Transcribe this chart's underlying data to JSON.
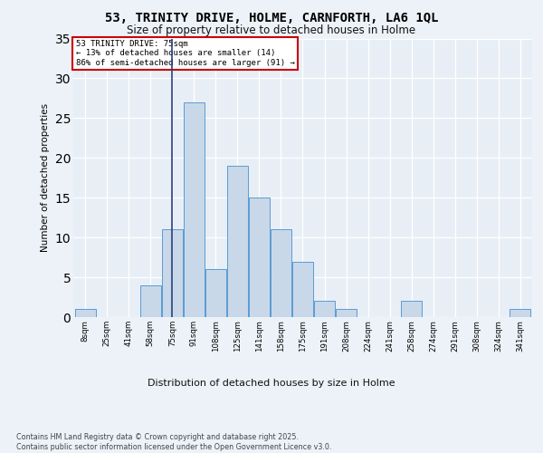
{
  "title_line1": "53, TRINITY DRIVE, HOLME, CARNFORTH, LA6 1QL",
  "title_line2": "Size of property relative to detached houses in Holme",
  "xlabel": "Distribution of detached houses by size in Holme",
  "ylabel": "Number of detached properties",
  "categories": [
    "8sqm",
    "25sqm",
    "41sqm",
    "58sqm",
    "75sqm",
    "91sqm",
    "108sqm",
    "125sqm",
    "141sqm",
    "158sqm",
    "175sqm",
    "191sqm",
    "208sqm",
    "224sqm",
    "241sqm",
    "258sqm",
    "274sqm",
    "291sqm",
    "308sqm",
    "324sqm",
    "341sqm"
  ],
  "values": [
    1,
    0,
    0,
    4,
    11,
    27,
    6,
    19,
    15,
    11,
    7,
    2,
    1,
    0,
    0,
    2,
    0,
    0,
    0,
    0,
    1
  ],
  "bar_color": "#c8d8e8",
  "bar_edge_color": "#5b9bd5",
  "vline_index": 4,
  "vline_color": "#2a4080",
  "annotation_title": "53 TRINITY DRIVE: 75sqm",
  "annotation_line2": "← 13% of detached houses are smaller (14)",
  "annotation_line3": "86% of semi-detached houses are larger (91) →",
  "annotation_box_color": "#ffffff",
  "annotation_box_edge": "#cc0000",
  "ylim": [
    0,
    35
  ],
  "yticks": [
    0,
    5,
    10,
    15,
    20,
    25,
    30,
    35
  ],
  "background_color": "#e8eef5",
  "grid_color": "#ffffff",
  "fig_bg_color": "#edf2f8",
  "footer": "Contains HM Land Registry data © Crown copyright and database right 2025.\nContains public sector information licensed under the Open Government Licence v3.0."
}
